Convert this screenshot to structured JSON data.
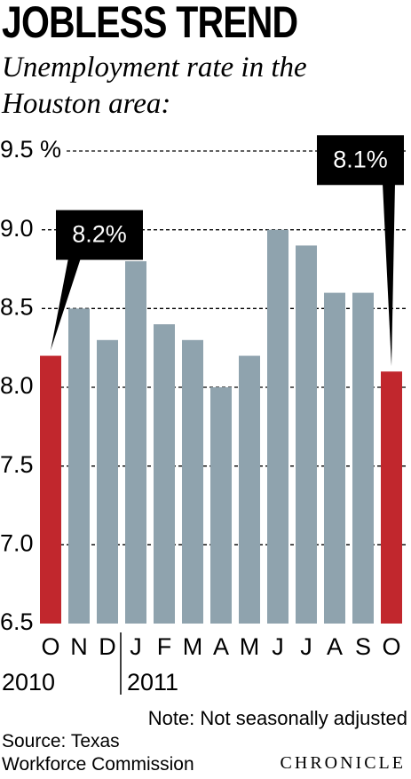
{
  "chart_data": {
    "type": "bar",
    "title": "JOBLESS TREND",
    "subtitle": "Unemployment rate in the Houston area:",
    "categories": [
      "O",
      "N",
      "D",
      "J",
      "F",
      "M",
      "A",
      "M",
      "J",
      "J",
      "A",
      "S",
      "O"
    ],
    "values": [
      8.2,
      8.5,
      8.3,
      8.8,
      8.4,
      8.3,
      8.0,
      8.2,
      9.0,
      8.9,
      8.6,
      8.6,
      8.1
    ],
    "value_labels": [
      "8.2%",
      null,
      null,
      null,
      null,
      null,
      null,
      null,
      null,
      null,
      null,
      null,
      "8.1%"
    ],
    "colors": [
      "#c1272d",
      "#8fa3ae",
      "#8fa3ae",
      "#8fa3ae",
      "#8fa3ae",
      "#8fa3ae",
      "#8fa3ae",
      "#8fa3ae",
      "#8fa3ae",
      "#8fa3ae",
      "#8fa3ae",
      "#8fa3ae",
      "#c1272d"
    ],
    "x_groups": [
      {
        "label": "2010",
        "first_category": 0
      },
      {
        "label": "2011",
        "first_category": 3
      }
    ],
    "ylim": [
      6.5,
      9.5
    ],
    "yticks": [
      6.5,
      {
        "value": 7,
        "label": "7.0"
      },
      7.5,
      {
        "value": 8,
        "label": "8.0"
      },
      8.5,
      {
        "value": 9,
        "label": "9.0"
      },
      {
        "value": 9.5,
        "label": "9.5 %"
      }
    ],
    "grid": true,
    "note": "Note: Not seasonally adjusted",
    "source": "Source: Texas Workforce Commission",
    "credit": "CHRONICLE"
  }
}
